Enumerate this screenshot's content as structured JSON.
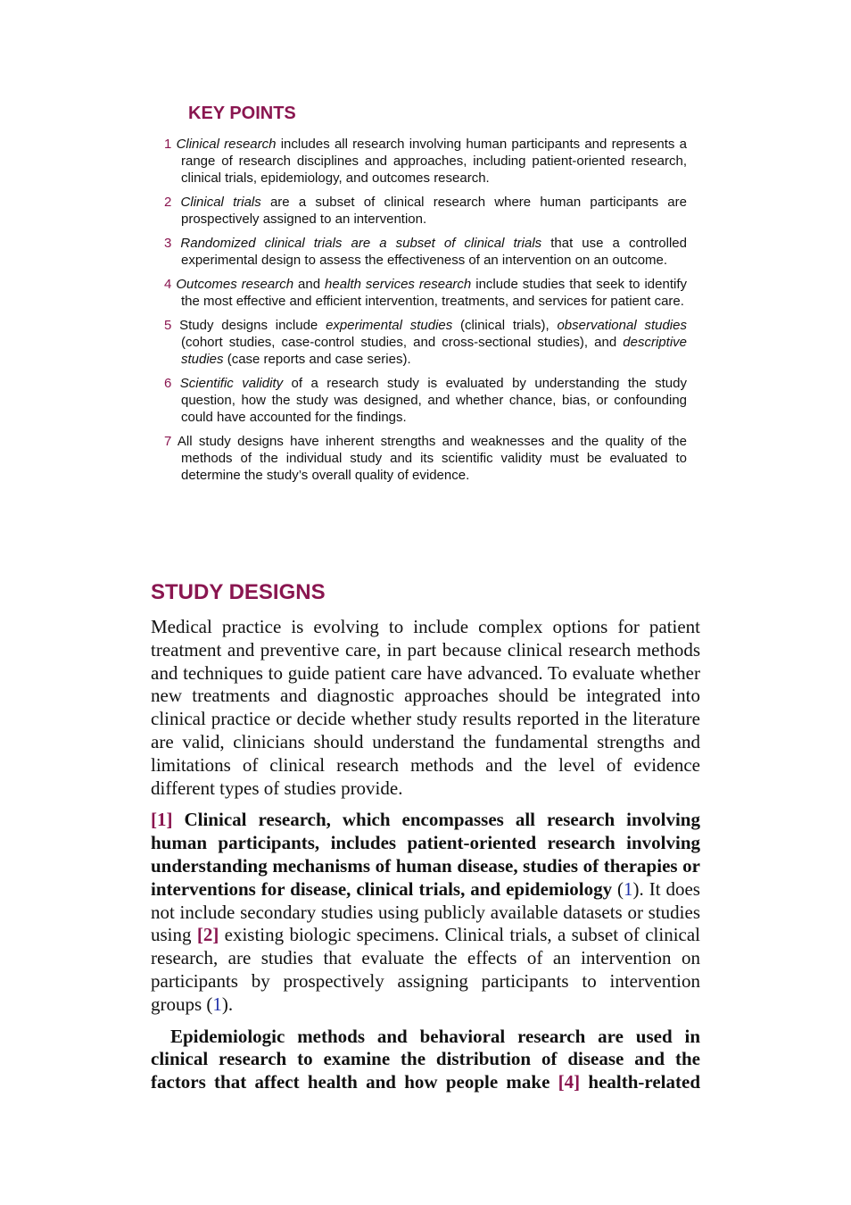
{
  "key_points": {
    "title": "KEY POINTS",
    "items": [
      {
        "number": 1,
        "runs": [
          {
            "text": "Clinical research",
            "style": "italic"
          },
          {
            "text": " includes all research involving human participants and represents a range of research disciplines and approaches, including patient-oriented research, clinical trials, epidemiology, and outcomes research.",
            "style": "normal"
          }
        ]
      },
      {
        "number": 2,
        "runs": [
          {
            "text": "Clinical trials",
            "style": "italic"
          },
          {
            "text": " are a subset of clinical research where human participants are prospectively assigned to an intervention.",
            "style": "normal"
          }
        ]
      },
      {
        "number": 3,
        "runs": [
          {
            "text": "Randomized clinical trials are a subset of clinical trials",
            "style": "italic"
          },
          {
            "text": " that use a controlled experimental design to assess the effectiveness of an intervention on an outcome.",
            "style": "normal"
          }
        ]
      },
      {
        "number": 4,
        "runs": [
          {
            "text": "Outcomes research",
            "style": "italic"
          },
          {
            "text": " and ",
            "style": "normal"
          },
          {
            "text": "health services research",
            "style": "italic"
          },
          {
            "text": " include studies that seek to identify the most effective and efficient intervention, treatments, and services for patient care.",
            "style": "normal"
          }
        ]
      },
      {
        "number": 5,
        "runs": [
          {
            "text": "Study designs include ",
            "style": "normal"
          },
          {
            "text": "experimental studies",
            "style": "italic"
          },
          {
            "text": " (clinical trials), ",
            "style": "normal"
          },
          {
            "text": "observational studies",
            "style": "italic"
          },
          {
            "text": " (cohort studies, case-control studies, and cross-sectional studies), and ",
            "style": "normal"
          },
          {
            "text": "descriptive studies",
            "style": "italic"
          },
          {
            "text": " (case reports and case series).",
            "style": "normal"
          }
        ]
      },
      {
        "number": 6,
        "runs": [
          {
            "text": "Scientific validity",
            "style": "italic"
          },
          {
            "text": " of a research study is evaluated by understanding the study question, how the study was designed, and whether chance, bias, or confounding could have accounted for the findings.",
            "style": "normal"
          }
        ]
      },
      {
        "number": 7,
        "runs": [
          {
            "text": "All study designs have inherent strengths and weaknesses and the quality of the methods of the individual study and its scientific validity must be evaluated to determine the study’s overall quality of evidence.",
            "style": "normal"
          }
        ]
      }
    ]
  },
  "section": {
    "title": "STUDY DESIGNS",
    "paragraphs": [
      {
        "indent": false,
        "runs": [
          {
            "text": "Medical practice is evolving to include complex options for patient treatment and preventive care, in part because clinical research methods and techniques to guide patient care have advanced. To evaluate whether new treatments and diagnostic approaches should be integrated into clinical practice or decide whether study results reported in the literature are valid, clinicians should understand the fundamental strengths and limitations of clinical research methods and the level of evidence different types of studies provide.",
            "style": "normal"
          }
        ]
      },
      {
        "indent": false,
        "runs": [
          {
            "text": "[1]",
            "style": "ref"
          },
          {
            "text": " Clinical research, which encompasses all research involving human participants, includes patient-oriented research involving understanding mechanisms of human disease, studies of therapies or interventions for disease, clinical trials, and epidemiology",
            "style": "bold"
          },
          {
            "text": " (",
            "style": "normal"
          },
          {
            "text": "1",
            "style": "cite"
          },
          {
            "text": "). It does not include secondary studies using publicly available datasets or studies using ",
            "style": "normal"
          },
          {
            "text": "[2]",
            "style": "ref"
          },
          {
            "text": " existing biologic specimens. Clinical trials, a subset of clinical research, are studies that evaluate the effects of an intervention on participants by prospectively assigning participants to intervention groups (",
            "style": "normal"
          },
          {
            "text": "1",
            "style": "cite"
          },
          {
            "text": ").",
            "style": "normal"
          }
        ]
      },
      {
        "indent": true,
        "runs": [
          {
            "text": "Epidemiologic methods and behavioral research are used in clinical research to examine the distribution of disease and the factors that affect health and how people make ",
            "style": "bold"
          },
          {
            "text": "[4]",
            "style": "ref"
          },
          {
            "text": " health-related",
            "style": "bold"
          }
        ]
      }
    ]
  }
}
